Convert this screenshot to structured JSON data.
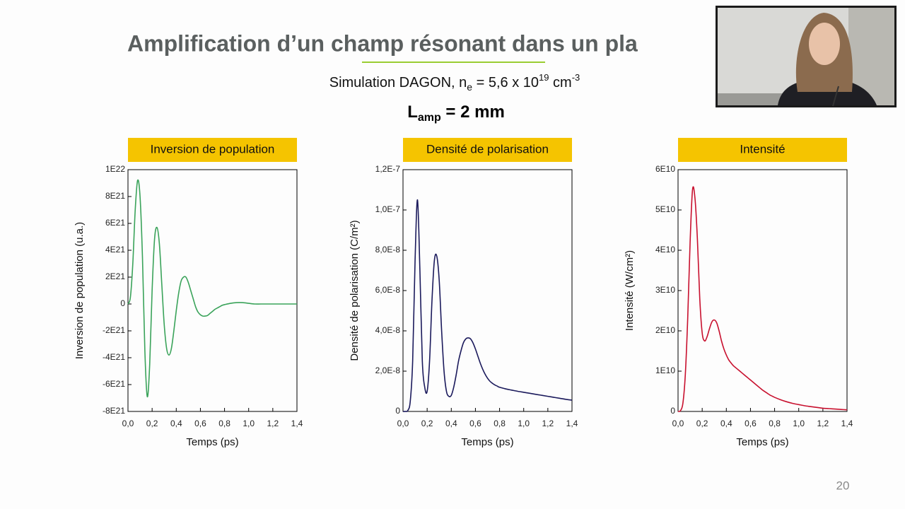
{
  "slide": {
    "title": "Amplification d’un champ résonant dans un pla",
    "subtitle": {
      "text": "Simulation DAGON, n",
      "sub": "e",
      "mid": " = 5,6 x 10",
      "sup": "19",
      "unit": " cm",
      "unit_sup": "-3"
    },
    "length": {
      "text": "L",
      "sub": "amp",
      "rest": " = 2 mm"
    },
    "page_number": "20"
  },
  "chart_data": [
    {
      "type": "line",
      "title": "Inversion de population",
      "xlabel": "Temps (ps)",
      "ylabel": "Inversion de population (u.a.)",
      "color": "#3aa35a",
      "x": [
        0,
        0.02,
        0.04,
        0.06,
        0.08,
        0.1,
        0.12,
        0.14,
        0.16,
        0.18,
        0.2,
        0.22,
        0.24,
        0.26,
        0.28,
        0.3,
        0.32,
        0.34,
        0.36,
        0.38,
        0.4,
        0.42,
        0.44,
        0.46,
        0.48,
        0.5,
        0.52,
        0.54,
        0.56,
        0.58,
        0.6,
        0.62,
        0.64,
        0.66,
        0.68,
        0.7,
        0.72,
        0.74,
        0.76,
        0.78,
        0.8,
        0.85,
        0.9,
        0.95,
        1.0,
        1.05,
        1.1,
        1.15,
        1.2,
        1.25,
        1.3,
        1.35,
        1.4
      ],
      "values": [
        0,
        5e+20,
        3e+21,
        7e+21,
        9.2e+21,
        8e+21,
        3.5e+21,
        -3.5e+21,
        -6.9e+21,
        -4.5e+21,
        1e+21,
        4.8e+21,
        5.7e+21,
        4.5e+21,
        1.5e+21,
        -1.5e+21,
        -3.3e+21,
        -3.8e+21,
        -3.3e+21,
        -2e+21,
        -5e+20,
        8e+20,
        1.7e+21,
        2e+21,
        2e+21,
        1.6e+21,
        1e+21,
        4e+20,
        -2e+20,
        -6e+20,
        -8e+20,
        -9e+20,
        -9e+20,
        -8.5e+20,
        -7e+20,
        -5.5e+20,
        -4e+20,
        -3e+20,
        -2e+20,
        -1e+20,
        -5e+19,
        5e+19,
        1e+20,
        1e+20,
        5e+19,
        0,
        0,
        0,
        0,
        0,
        0,
        0,
        0
      ],
      "xlim": [
        0,
        1.4
      ],
      "xticks": [
        {
          "value": 0,
          "label": "0,0"
        },
        {
          "value": 0.2,
          "label": "0,2"
        },
        {
          "value": 0.4,
          "label": "0,4"
        },
        {
          "value": 0.6,
          "label": "0,6"
        },
        {
          "value": 0.8,
          "label": "0,8"
        },
        {
          "value": 1.0,
          "label": "1,0"
        },
        {
          "value": 1.2,
          "label": "1,2"
        },
        {
          "value": 1.4,
          "label": "1,4"
        }
      ],
      "ylim": [
        -8e+21,
        1e+22
      ],
      "yticks": [
        {
          "value": -8e+21,
          "label": "-8E21"
        },
        {
          "value": -6e+21,
          "label": "-6E21"
        },
        {
          "value": -4e+21,
          "label": "-4E21"
        },
        {
          "value": -2e+21,
          "label": "-2E21"
        },
        0,
        {
          "value": 2e+21,
          "label": "2E21"
        },
        {
          "value": 4e+21,
          "label": "4E21"
        },
        {
          "value": 6e+21,
          "label": "6E21"
        },
        {
          "value": 8e+21,
          "label": "8E21"
        },
        {
          "value": 1e+22,
          "label": "1E22"
        }
      ]
    },
    {
      "type": "line",
      "title": "Densité de polarisation",
      "xlabel": "Temps (ps)",
      "ylabel": "Densité de polarisation (C/m²)",
      "color": "#1b1a5c",
      "x": [
        0,
        0.02,
        0.04,
        0.06,
        0.08,
        0.1,
        0.12,
        0.14,
        0.16,
        0.18,
        0.2,
        0.22,
        0.24,
        0.26,
        0.28,
        0.3,
        0.32,
        0.34,
        0.36,
        0.38,
        0.4,
        0.42,
        0.44,
        0.46,
        0.48,
        0.5,
        0.52,
        0.54,
        0.56,
        0.58,
        0.6,
        0.62,
        0.64,
        0.66,
        0.68,
        0.7,
        0.72,
        0.74,
        0.76,
        0.78,
        0.8,
        0.85,
        0.9,
        0.95,
        1.0,
        1.05,
        1.1,
        1.15,
        1.2,
        1.25,
        1.3,
        1.35,
        1.4
      ],
      "values": [
        0,
        0,
        5e-10,
        5e-09,
        2.5e-08,
        7.5e-08,
        1.05e-07,
        7e-08,
        2.5e-08,
        1.2e-08,
        1e-08,
        2.5e-08,
        5.5e-08,
        7.5e-08,
        7.7e-08,
        6.5e-08,
        4e-08,
        2e-08,
        1e-08,
        7.5e-09,
        8e-09,
        1.2e-08,
        1.8e-08,
        2.5e-08,
        3e-08,
        3.4e-08,
        3.6e-08,
        3.65e-08,
        3.6e-08,
        3.4e-08,
        3.1e-08,
        2.75e-08,
        2.4e-08,
        2.1e-08,
        1.85e-08,
        1.65e-08,
        1.5e-08,
        1.4e-08,
        1.32e-08,
        1.26e-08,
        1.2e-08,
        1.12e-08,
        1.06e-08,
        1e-08,
        9.5e-09,
        9e-09,
        8.5e-09,
        8e-09,
        7.5e-09,
        7e-09,
        6.5e-09,
        6e-09,
        5.6e-09
      ],
      "xlim": [
        0,
        1.4
      ],
      "xticks": [
        {
          "value": 0,
          "label": "0,0"
        },
        {
          "value": 0.2,
          "label": "0,2"
        },
        {
          "value": 0.4,
          "label": "0,4"
        },
        {
          "value": 0.6,
          "label": "0,6"
        },
        {
          "value": 0.8,
          "label": "0,8"
        },
        {
          "value": 1.0,
          "label": "1,0"
        },
        {
          "value": 1.2,
          "label": "1,2"
        },
        {
          "value": 1.4,
          "label": "1,4"
        }
      ],
      "ylim": [
        0,
        1.2e-07
      ],
      "yticks": [
        0,
        {
          "value": 2e-08,
          "label": "2,0E-8"
        },
        {
          "value": 4e-08,
          "label": "4,0E-8"
        },
        {
          "value": 6e-08,
          "label": "6,0E-8"
        },
        {
          "value": 8e-08,
          "label": "8,0E-8"
        },
        {
          "value": 1e-07,
          "label": "1,0E-7"
        },
        {
          "value": 1.2e-07,
          "label": "1,2E-7"
        }
      ]
    },
    {
      "type": "line",
      "title": "Intensité",
      "xlabel": "Temps (ps)",
      "ylabel": "Intensité (W/cm²)",
      "color": "#c8102e",
      "x": [
        0,
        0.02,
        0.04,
        0.06,
        0.08,
        0.1,
        0.12,
        0.14,
        0.16,
        0.18,
        0.2,
        0.22,
        0.24,
        0.26,
        0.28,
        0.3,
        0.32,
        0.34,
        0.36,
        0.38,
        0.4,
        0.42,
        0.44,
        0.46,
        0.48,
        0.5,
        0.52,
        0.54,
        0.56,
        0.58,
        0.6,
        0.62,
        0.64,
        0.66,
        0.68,
        0.7,
        0.72,
        0.74,
        0.76,
        0.78,
        0.8,
        0.85,
        0.9,
        0.95,
        1.0,
        1.05,
        1.1,
        1.15,
        1.2,
        1.25,
        1.3,
        1.35,
        1.4
      ],
      "values": [
        0,
        200000000.0,
        2000000000.0,
        9000000000.0,
        23000000000.0,
        42000000000.0,
        55000000000.0,
        53000000000.0,
        43000000000.0,
        28000000000.0,
        19500000000.0,
        17500000000.0,
        18500000000.0,
        20500000000.0,
        22200000000.0,
        22700000000.0,
        22000000000.0,
        20000000000.0,
        17500000000.0,
        15500000000.0,
        14000000000.0,
        12800000000.0,
        12000000000.0,
        11300000000.0,
        10800000000.0,
        10300000000.0,
        9800000000.0,
        9300000000.0,
        8800000000.0,
        8300000000.0,
        7800000000.0,
        7300000000.0,
        6800000000.0,
        6300000000.0,
        5800000000.0,
        5300000000.0,
        4900000000.0,
        4500000000.0,
        4100000000.0,
        3800000000.0,
        3500000000.0,
        2900000000.0,
        2400000000.0,
        2000000000.0,
        1700000000.0,
        1400000000.0,
        1200000000.0,
        1000000000.0,
        800000000.0,
        700000000.0,
        600000000.0,
        500000000.0,
        400000000.0
      ],
      "xlim": [
        0,
        1.4
      ],
      "xticks": [
        {
          "value": 0,
          "label": "0,0"
        },
        {
          "value": 0.2,
          "label": "0,2"
        },
        {
          "value": 0.4,
          "label": "0,4"
        },
        {
          "value": 0.6,
          "label": "0,6"
        },
        {
          "value": 0.8,
          "label": "0,8"
        },
        {
          "value": 1.0,
          "label": "1,0"
        },
        {
          "value": 1.2,
          "label": "1,2"
        },
        {
          "value": 1.4,
          "label": "1,4"
        }
      ],
      "ylim": [
        0,
        60000000000.0
      ],
      "yticks": [
        0,
        {
          "value": 10000000000.0,
          "label": "1E10"
        },
        {
          "value": 20000000000.0,
          "label": "2E10"
        },
        {
          "value": 30000000000.0,
          "label": "3E10"
        },
        {
          "value": 40000000000.0,
          "label": "4E10"
        },
        {
          "value": 50000000000.0,
          "label": "5E10"
        },
        {
          "value": 60000000000.0,
          "label": "6E10"
        }
      ]
    }
  ]
}
